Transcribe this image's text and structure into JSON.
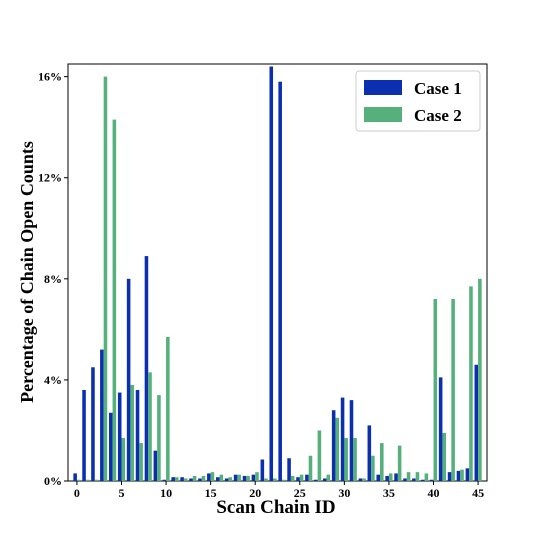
{
  "chart_data": {
    "type": "bar",
    "xlabel": "Scan Chain ID",
    "ylabel": "Percentage of Chain Open Counts",
    "xlim": [
      -1,
      46
    ],
    "ylim": [
      0,
      16.5
    ],
    "x_ticks": [
      0,
      5,
      10,
      15,
      20,
      25,
      30,
      35,
      40,
      45
    ],
    "y_ticks": [
      0,
      4,
      8,
      12,
      16
    ],
    "y_tick_labels": [
      "0%",
      "4%",
      "8%",
      "12%",
      "16%"
    ],
    "legend_position": "top-right",
    "x": [
      0,
      1,
      2,
      3,
      4,
      5,
      6,
      7,
      8,
      9,
      10,
      11,
      12,
      13,
      14,
      15,
      16,
      17,
      18,
      19,
      20,
      21,
      22,
      23,
      24,
      25,
      26,
      27,
      28,
      29,
      30,
      31,
      32,
      33,
      34,
      35,
      36,
      37,
      38,
      39,
      40,
      41,
      42,
      43,
      44,
      45
    ],
    "series": [
      {
        "name": "Case 1",
        "color": "#0b2fae",
        "values": [
          0.3,
          3.6,
          4.5,
          5.2,
          2.7,
          3.5,
          8.0,
          3.6,
          8.9,
          1.2,
          0.05,
          0.15,
          0.15,
          0.1,
          0.1,
          0.3,
          0.15,
          0.1,
          0.25,
          0.2,
          0.25,
          0.85,
          16.4,
          15.8,
          0.9,
          0.15,
          0.25,
          0.05,
          0.1,
          2.8,
          3.3,
          3.2,
          0.1,
          2.2,
          0.25,
          0.2,
          0.3,
          0.1,
          0.1,
          0.05,
          0.05,
          4.1,
          0.35,
          0.4,
          0.5,
          4.6
        ]
      },
      {
        "name": "Case 2",
        "color": "#55b07c",
        "values": [
          0.05,
          0.05,
          0.05,
          16.0,
          14.3,
          1.7,
          3.8,
          1.5,
          4.3,
          3.4,
          5.7,
          0.15,
          0.1,
          0.2,
          0.2,
          0.35,
          0.25,
          0.15,
          0.25,
          0.2,
          0.35,
          0.1,
          0.1,
          0.05,
          0.2,
          0.25,
          1.0,
          2.0,
          0.25,
          2.5,
          1.7,
          1.7,
          0.1,
          1.0,
          1.5,
          0.3,
          1.4,
          0.35,
          0.35,
          0.3,
          7.2,
          1.9,
          7.2,
          0.45,
          7.7,
          8.0
        ]
      }
    ]
  }
}
